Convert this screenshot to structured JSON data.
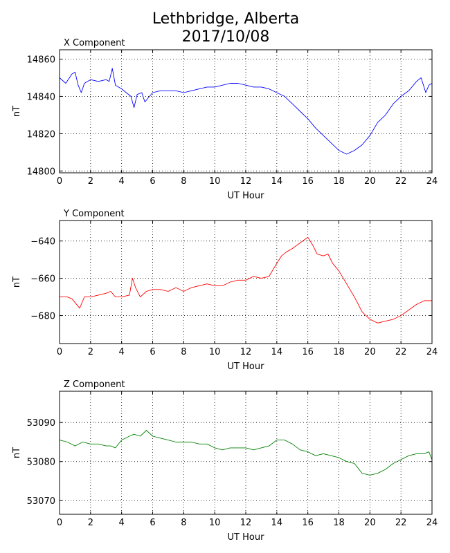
{
  "title_line1": "Lethbridge, Alberta",
  "title_line2": "2017/10/08",
  "chart_data": [
    {
      "type": "line",
      "title": "X Component",
      "xlabel": "UT Hour",
      "ylabel": "nT",
      "xlim": [
        0,
        24
      ],
      "ylim": [
        14799,
        14865
      ],
      "xticks": [
        0,
        2,
        4,
        6,
        8,
        10,
        12,
        14,
        16,
        18,
        20,
        22,
        24
      ],
      "yticks": [
        14800,
        14820,
        14840,
        14860
      ],
      "grid": true,
      "series": [
        {
          "color": "#0000ff",
          "x": [
            0,
            0.4,
            0.8,
            1.0,
            1.2,
            1.4,
            1.6,
            2.0,
            2.5,
            3.0,
            3.2,
            3.4,
            3.6,
            4.0,
            4.3,
            4.6,
            4.8,
            5.0,
            5.3,
            5.5,
            5.8,
            6.0,
            6.5,
            7.0,
            7.5,
            8.0,
            8.5,
            9.0,
            9.5,
            10.0,
            10.5,
            11.0,
            11.5,
            12.0,
            12.5,
            13.0,
            13.5,
            14.0,
            14.5,
            15.0,
            15.5,
            16.0,
            16.5,
            17.0,
            17.5,
            18.0,
            18.5,
            19.0,
            19.5,
            20.0,
            20.5,
            21.0,
            21.5,
            22.0,
            22.5,
            23.0,
            23.3,
            23.6,
            23.8,
            24.0
          ],
          "y": [
            14850,
            14847,
            14852,
            14853,
            14846,
            14842,
            14847,
            14849,
            14848,
            14849,
            14848,
            14855,
            14846,
            14844,
            14842,
            14840,
            14834,
            14841,
            14842,
            14837,
            14840,
            14842,
            14843,
            14843,
            14843,
            14842,
            14843,
            14844,
            14845,
            14845,
            14846,
            14847,
            14847,
            14846,
            14845,
            14845,
            14844,
            14842,
            14840,
            14836,
            14832,
            14828,
            14823,
            14819,
            14815,
            14811,
            14809,
            14811,
            14814,
            14819,
            14826,
            14830,
            14836,
            14840,
            14843,
            14848,
            14850,
            14842,
            14846,
            14847
          ]
        }
      ]
    },
    {
      "type": "line",
      "title": "Y Component",
      "xlabel": "UT Hour",
      "ylabel": "nT",
      "xlim": [
        0,
        24
      ],
      "ylim": [
        -695,
        -629
      ],
      "xticks": [
        0,
        2,
        4,
        6,
        8,
        10,
        12,
        14,
        16,
        18,
        20,
        22,
        24
      ],
      "yticks": [
        -640,
        -660,
        -680
      ],
      "grid": true,
      "series": [
        {
          "color": "#ff0000",
          "x": [
            0,
            0.5,
            0.8,
            1.1,
            1.3,
            1.6,
            2.0,
            2.5,
            3.0,
            3.3,
            3.6,
            4.0,
            4.5,
            4.7,
            4.9,
            5.2,
            5.6,
            6.0,
            6.5,
            7.0,
            7.5,
            8.0,
            8.5,
            9.0,
            9.5,
            10.0,
            10.5,
            11.0,
            11.5,
            12.0,
            12.5,
            13.0,
            13.5,
            14.0,
            14.3,
            14.6,
            15.0,
            15.5,
            16.0,
            16.3,
            16.6,
            17.0,
            17.3,
            17.6,
            18.0,
            18.5,
            19.0,
            19.5,
            20.0,
            20.5,
            21.0,
            21.5,
            22.0,
            22.5,
            23.0,
            23.5,
            24.0
          ],
          "y": [
            -670,
            -670,
            -671,
            -674,
            -676,
            -670,
            -670,
            -669,
            -668,
            -667,
            -670,
            -670,
            -669,
            -660,
            -665,
            -670,
            -667,
            -666,
            -666,
            -667,
            -665,
            -667,
            -665,
            -664,
            -663,
            -664,
            -664,
            -662,
            -661,
            -661,
            -659,
            -660,
            -659,
            -652,
            -648,
            -646,
            -644,
            -641,
            -638,
            -642,
            -647,
            -648,
            -647,
            -652,
            -656,
            -663,
            -670,
            -678,
            -682,
            -684,
            -683,
            -682,
            -680,
            -677,
            -674,
            -672,
            -672
          ]
        }
      ]
    },
    {
      "type": "line",
      "title": "Z Component",
      "xlabel": "UT Hour",
      "ylabel": "nT",
      "xlim": [
        0,
        24
      ],
      "ylim": [
        53066.5,
        53098
      ],
      "xticks": [
        0,
        2,
        4,
        6,
        8,
        10,
        12,
        14,
        16,
        18,
        20,
        22,
        24
      ],
      "yticks": [
        53070,
        53080,
        53090
      ],
      "grid": true,
      "series": [
        {
          "color": "#008000",
          "x": [
            0,
            0.5,
            1.0,
            1.5,
            2.0,
            2.5,
            3.0,
            3.3,
            3.6,
            4.0,
            4.5,
            4.8,
            5.2,
            5.6,
            6.0,
            6.5,
            7.0,
            7.5,
            8.0,
            8.5,
            9.0,
            9.5,
            10.0,
            10.5,
            11.0,
            11.5,
            12.0,
            12.5,
            13.0,
            13.5,
            14.0,
            14.5,
            15.0,
            15.5,
            16.0,
            16.5,
            17.0,
            17.5,
            18.0,
            18.5,
            19.0,
            19.5,
            20.0,
            20.5,
            21.0,
            21.5,
            22.0,
            22.5,
            23.0,
            23.5,
            23.8,
            24.0
          ],
          "y": [
            53085.5,
            53085,
            53084,
            53085,
            53084.5,
            53084.5,
            53084,
            53084,
            53083.5,
            53085.5,
            53086.5,
            53087,
            53086.5,
            53088,
            53086.5,
            53086,
            53085.5,
            53085,
            53085,
            53085,
            53084.5,
            53084.5,
            53083.5,
            53083,
            53083.5,
            53083.5,
            53083.5,
            53083,
            53083.5,
            53084,
            53085.5,
            53085.5,
            53084.5,
            53083,
            53082.5,
            53081.5,
            53082,
            53081.5,
            53081,
            53080,
            53079.5,
            53077,
            53076.5,
            53077,
            53078,
            53079.5,
            53080.5,
            53081.5,
            53082,
            53082,
            53082.5,
            53080.5
          ]
        }
      ]
    }
  ]
}
